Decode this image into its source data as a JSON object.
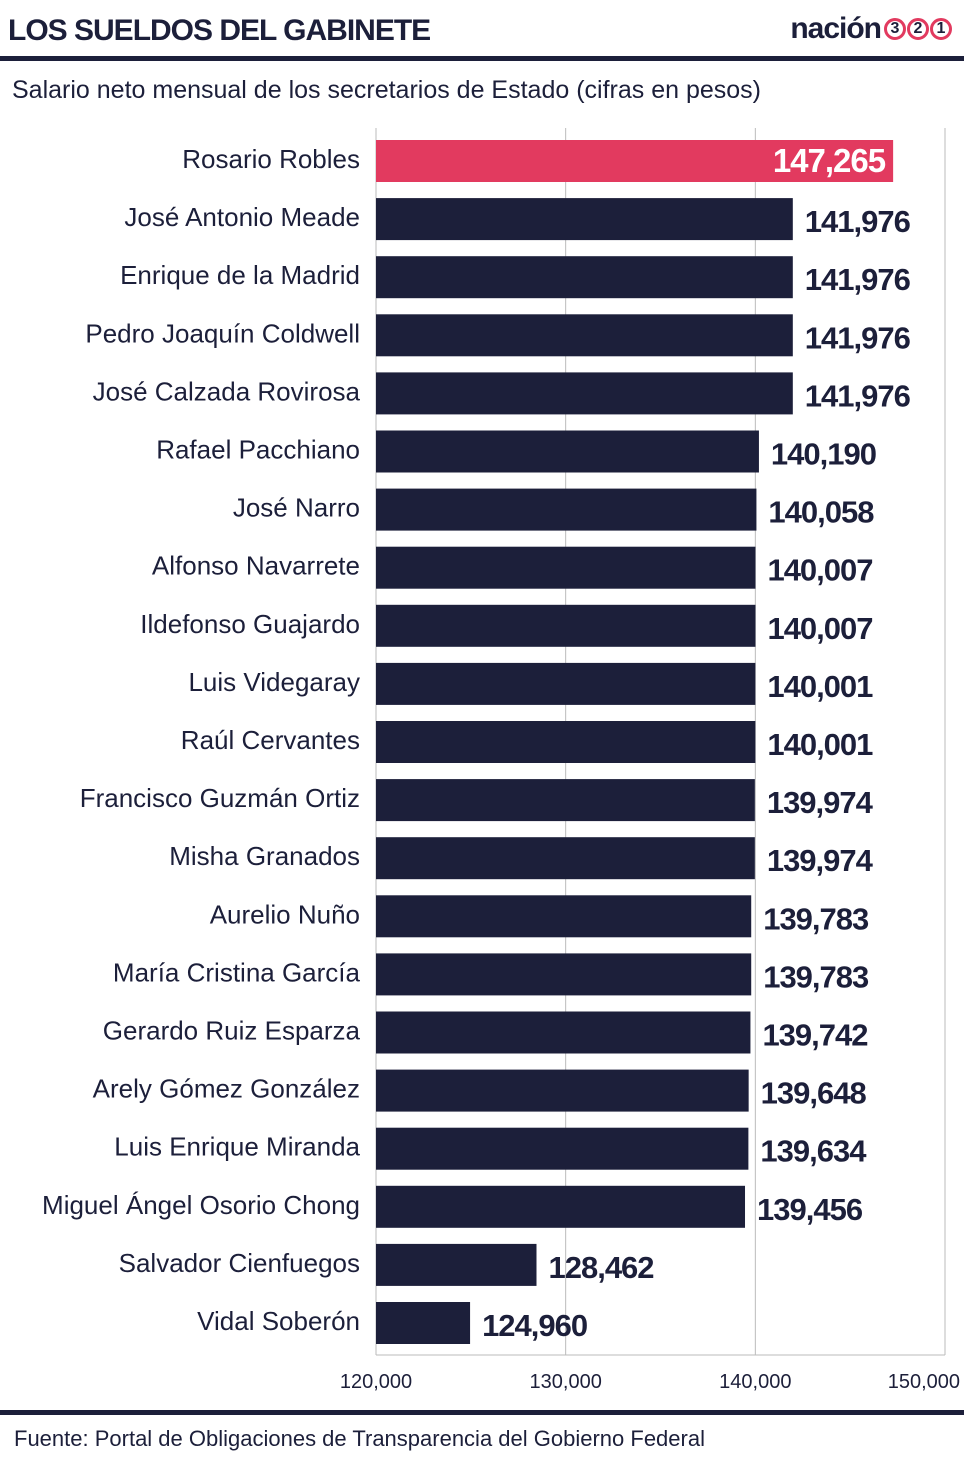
{
  "header": {
    "title": "LOS SUELDOS DEL GABINETE",
    "brand": "nación",
    "brand_digits": [
      "3",
      "2",
      "1"
    ]
  },
  "subtitle": "Salario neto mensual de los secretarios de Estado (cifras en pesos)",
  "source": "Fuente: Portal de Obligaciones de Transparencia del Gobierno Federal",
  "colors": {
    "bar": "#1c1f3a",
    "highlight": "#e23a5f",
    "text": "#1c1f3a",
    "grid": "#bbbbbb"
  },
  "chart_data": {
    "type": "bar",
    "orientation": "horizontal",
    "categories": [
      "Rosario Robles",
      "José Antonio Meade",
      "Enrique de la Madrid",
      "Pedro Joaquín Coldwell",
      "José Calzada Rovirosa",
      "Rafael Pacchiano",
      "José Narro",
      "Alfonso Navarrete",
      "Ildefonso Guajardo",
      "Luis Videgaray",
      "Raúl Cervantes",
      "Francisco Guzmán Ortiz",
      "Misha Granados",
      "Aurelio Nuño",
      "María Cristina García",
      "Gerardo Ruiz Esparza",
      "Arely Gómez González",
      "Luis Enrique Miranda",
      "Miguel Ángel Osorio Chong",
      "Salvador Cienfuegos",
      "Vidal Soberón"
    ],
    "values": [
      147265,
      141976,
      141976,
      141976,
      141976,
      140190,
      140058,
      140007,
      140007,
      140001,
      140001,
      139974,
      139974,
      139783,
      139783,
      139742,
      139648,
      139634,
      139456,
      128462,
      124960
    ],
    "value_labels": [
      "147,265",
      "141,976",
      "141,976",
      "141,976",
      "141,976",
      "140,190",
      "140,058",
      "140,007",
      "140,007",
      "140,001",
      "140,001",
      "139,974",
      "139,974",
      "139,783",
      "139,783",
      "139,742",
      "139,648",
      "139,634",
      "139,456",
      "128,462",
      "124,960"
    ],
    "highlight_index": 0,
    "xlim": [
      120000,
      150000
    ],
    "xticks": [
      120000,
      130000,
      140000,
      150000
    ],
    "xtick_labels": [
      "120,000",
      "130,000",
      "140,000",
      "150,000"
    ],
    "grid": true
  }
}
